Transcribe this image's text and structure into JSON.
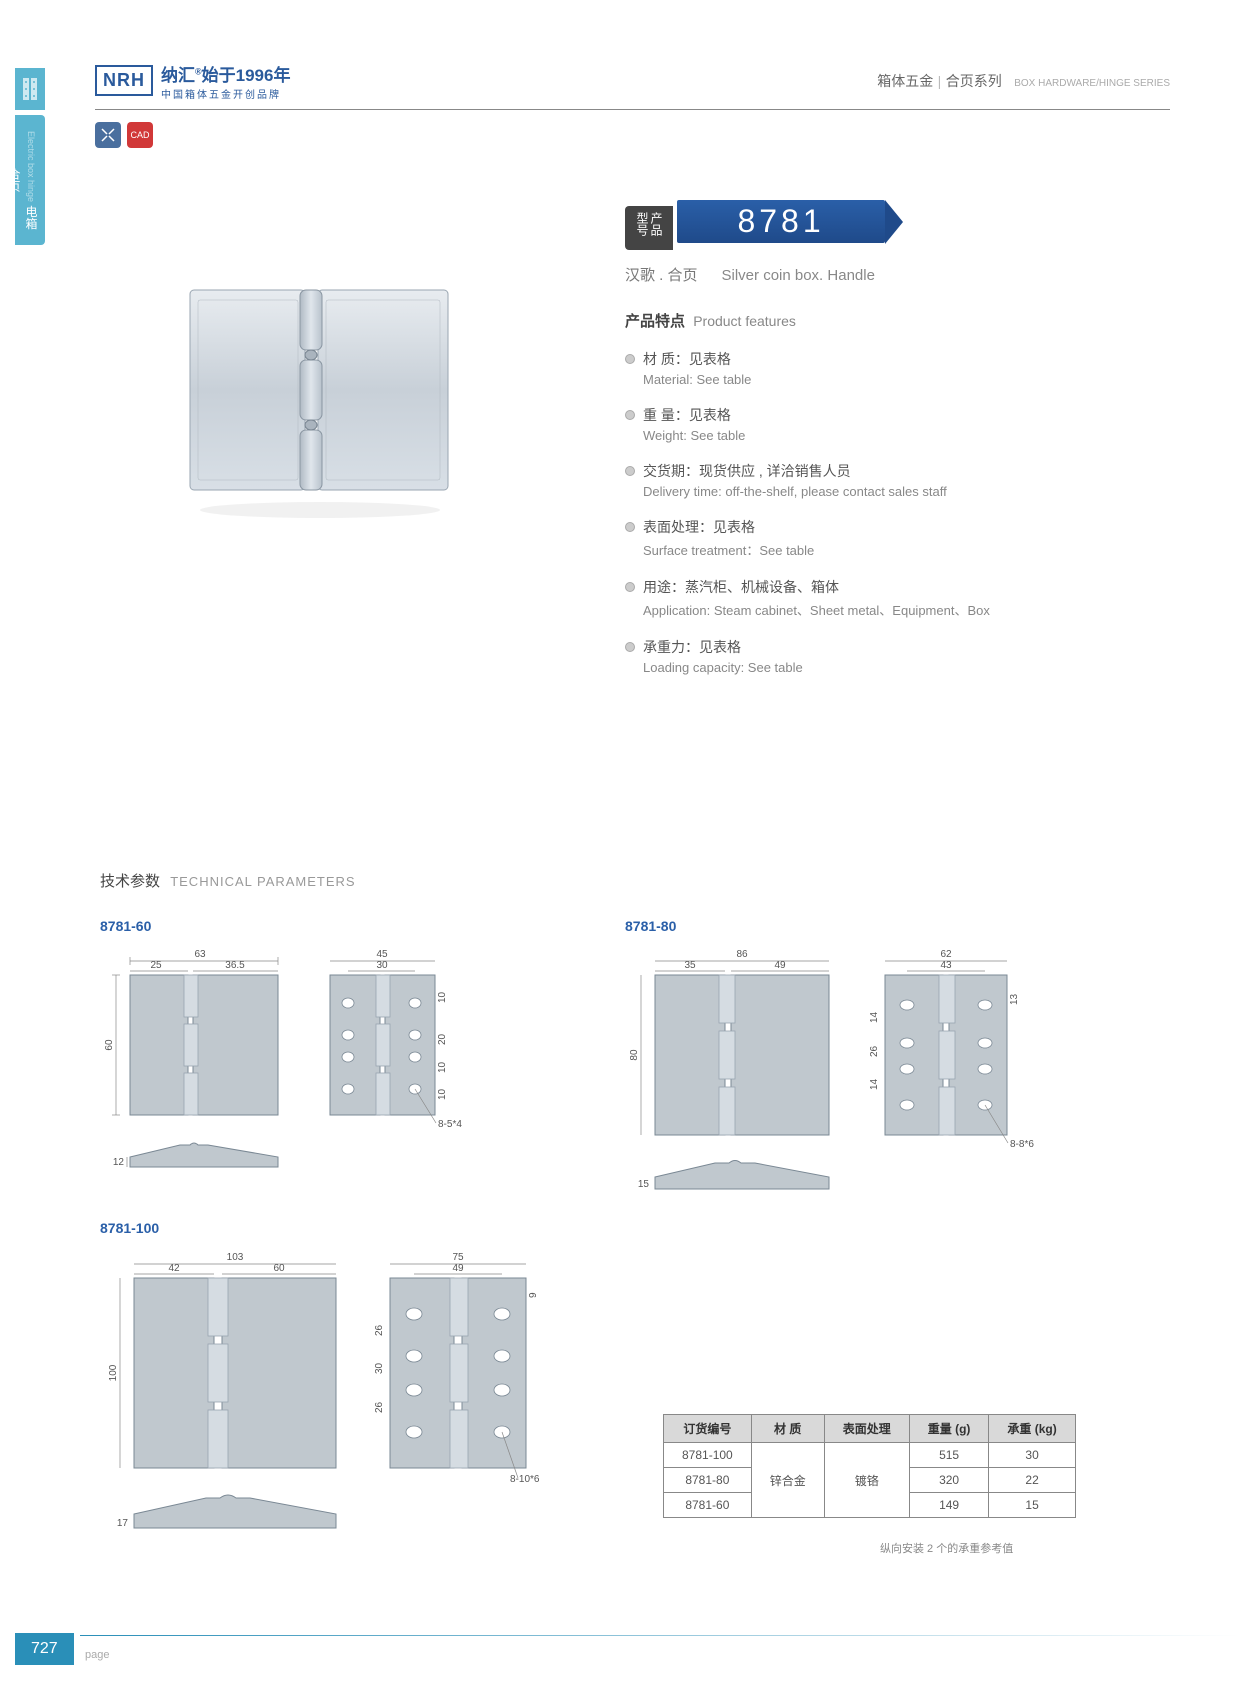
{
  "header": {
    "logo_mark": "NRH",
    "logo_main": "纳汇",
    "logo_reg": "®",
    "logo_since": "始于1996年",
    "logo_sub": "中国箱体五金开创品牌",
    "right_cn": "箱体五金",
    "right_sep": "|",
    "right_cn2": "合页系列",
    "right_en": "BOX HARDWARE/HINGE SERIES"
  },
  "side": {
    "cn": "电箱合页",
    "en": "Electric box hinge"
  },
  "badges": {
    "b1": "✕",
    "b2": "CAD"
  },
  "model": {
    "label": "产品型号",
    "number": "8781",
    "sub_cn": "汉歌 . 合页",
    "sub_en": "Silver coin box. Handle"
  },
  "features": {
    "title_cn": "产品特点",
    "title_en": "Product features",
    "items": [
      {
        "cn": "材 质：见表格",
        "en": "Material: See table"
      },
      {
        "cn": "重 量：见表格",
        "en": "Weight: See table"
      },
      {
        "cn": "交货期：现货供应 , 详洽销售人员",
        "en": "Delivery time: off-the-shelf, please contact sales staff"
      },
      {
        "cn": "表面处理：见表格",
        "en": "Surface treatment：See table"
      },
      {
        "cn": "用途：蒸汽柜、机械设备、箱体",
        "en": "Application: Steam cabinet、Sheet metal、Equipment、Box"
      },
      {
        "cn": "承重力：见表格",
        "en": "Loading capacity: See table"
      }
    ]
  },
  "tech": {
    "title_cn": "技术参数",
    "title_en": "TECHNICAL PARAMETERS"
  },
  "variants": {
    "v1": "8781-60",
    "v2": "8781-80",
    "v3": "8781-100"
  },
  "dims_60": {
    "w": "63",
    "w1": "25",
    "w2": "36.5",
    "h": "60",
    "t": "12",
    "bw": "45",
    "bw1": "30",
    "bh1": "10",
    "bh2": "20",
    "bh3": "10",
    "bh4": "10",
    "hole": "8-5*4"
  },
  "dims_80": {
    "w": "86",
    "w1": "35",
    "w2": "49",
    "h": "80",
    "t": "15",
    "bw": "62",
    "bw1": "43",
    "bh1": "14",
    "bh2": "26",
    "bh3": "14",
    "bh4": "13",
    "hole": "8-8*6"
  },
  "dims_100": {
    "w": "103",
    "w1": "42",
    "w2": "60",
    "h": "100",
    "t": "17",
    "bw": "75",
    "bw1": "49",
    "bh1": "26",
    "bh2": "30",
    "bh3": "26",
    "bh4": "9",
    "hole": "8-10*6"
  },
  "table": {
    "headers": [
      "订货编号",
      "材  质",
      "表面处理",
      "重量 (g)",
      "承重 (kg)"
    ],
    "rows": [
      [
        "8781-100",
        "",
        "",
        "515",
        "30"
      ],
      [
        "8781-80",
        "锌合金",
        "镀铬",
        "320",
        "22"
      ],
      [
        "8781-60",
        "",
        "",
        "149",
        "15"
      ]
    ],
    "note": "纵向安装 2 个的承重参考值"
  },
  "page": {
    "num": "727",
    "label": "page"
  },
  "colors": {
    "accent": "#2a5fa8",
    "hinge": "#c0c8ce",
    "hinge_stroke": "#7a8894"
  }
}
